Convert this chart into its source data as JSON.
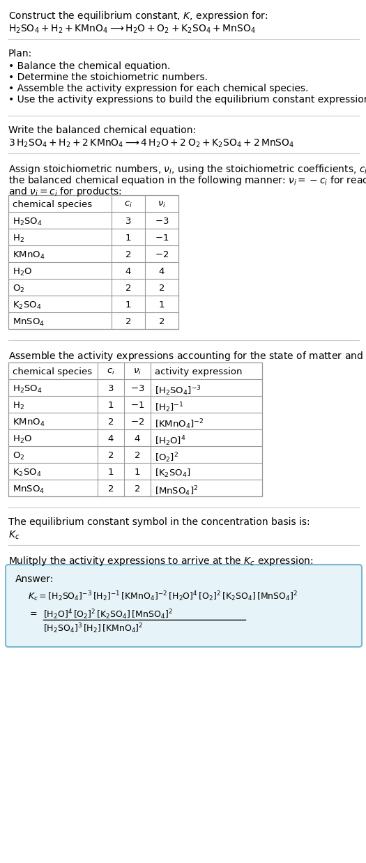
{
  "title_line1": "Construct the equilibrium constant, $K$, expression for:",
  "title_line2": "$\\mathrm{H_2SO_4 + H_2 + KMnO_4 \\longrightarrow H_2O + O_2 + K_2SO_4 + MnSO_4}$",
  "plan_header": "Plan:",
  "plan_items": [
    "Balance the chemical equation.",
    "Determine the stoichiometric numbers.",
    "Assemble the activity expression for each chemical species.",
    "Use the activity expressions to build the equilibrium constant expression."
  ],
  "balanced_header": "Write the balanced chemical equation:",
  "balanced_eq": "$3\\,\\mathrm{H_2SO_4 + H_2 + 2\\,KMnO_4 \\longrightarrow 4\\,H_2O + 2\\,O_2 + K_2SO_4 + 2\\,MnSO_4}$",
  "stoich_header_l1": "Assign stoichiometric numbers, $\\nu_i$, using the stoichiometric coefficients, $c_i$, from",
  "stoich_header_l2": "the balanced chemical equation in the following manner: $\\nu_i = -c_i$ for reactants",
  "stoich_header_l3": "and $\\nu_i = c_i$ for products:",
  "table1_headers": [
    "chemical species",
    "$c_i$",
    "$\\nu_i$"
  ],
  "table1_rows": [
    [
      "$\\mathrm{H_2SO_4}$",
      "3",
      "$-3$"
    ],
    [
      "$\\mathrm{H_2}$",
      "1",
      "$-1$"
    ],
    [
      "$\\mathrm{KMnO_4}$",
      "2",
      "$-2$"
    ],
    [
      "$\\mathrm{H_2O}$",
      "4",
      "4"
    ],
    [
      "$\\mathrm{O_2}$",
      "2",
      "2"
    ],
    [
      "$\\mathrm{K_2SO_4}$",
      "1",
      "1"
    ],
    [
      "$\\mathrm{MnSO_4}$",
      "2",
      "2"
    ]
  ],
  "activity_header": "Assemble the activity expressions accounting for the state of matter and $\\nu_i$:",
  "table2_headers": [
    "chemical species",
    "$c_i$",
    "$\\nu_i$",
    "activity expression"
  ],
  "table2_rows": [
    [
      "$\\mathrm{H_2SO_4}$",
      "3",
      "$-3$",
      "$[\\mathrm{H_2SO_4}]^{-3}$"
    ],
    [
      "$\\mathrm{H_2}$",
      "1",
      "$-1$",
      "$[\\mathrm{H_2}]^{-1}$"
    ],
    [
      "$\\mathrm{KMnO_4}$",
      "2",
      "$-2$",
      "$[\\mathrm{KMnO_4}]^{-2}$"
    ],
    [
      "$\\mathrm{H_2O}$",
      "4",
      "4",
      "$[\\mathrm{H_2O}]^{4}$"
    ],
    [
      "$\\mathrm{O_2}$",
      "2",
      "2",
      "$[\\mathrm{O_2}]^{2}$"
    ],
    [
      "$\\mathrm{K_2SO_4}$",
      "1",
      "1",
      "$[\\mathrm{K_2SO_4}]$"
    ],
    [
      "$\\mathrm{MnSO_4}$",
      "2",
      "2",
      "$[\\mathrm{MnSO_4}]^{2}$"
    ]
  ],
  "kc_header": "The equilibrium constant symbol in the concentration basis is:",
  "kc_symbol": "$K_c$",
  "multiply_header": "Mulitply the activity expressions to arrive at the $K_c$ expression:",
  "answer_label": "Answer:",
  "answer_line1": "$K_c = [\\mathrm{H_2SO_4}]^{-3}\\,[\\mathrm{H_2}]^{-1}\\,[\\mathrm{KMnO_4}]^{-2}\\,[\\mathrm{H_2O}]^{4}\\,[\\mathrm{O_2}]^{2}\\,[\\mathrm{K_2SO_4}]\\,[\\mathrm{MnSO_4}]^{2}$",
  "answer_numerator": "$[\\mathrm{H_2O}]^4\\,[\\mathrm{O_2}]^2\\,[\\mathrm{K_2SO_4}]\\,[\\mathrm{MnSO_4}]^2$",
  "answer_denominator": "$[\\mathrm{H_2SO_4}]^3\\,[\\mathrm{H_2}]\\,[\\mathrm{KMnO_4}]^2$",
  "bg_color": "#ffffff",
  "box_bg_color": "#e6f3f8",
  "box_border_color": "#7ab8d0",
  "table_border_color": "#999999",
  "text_color": "#000000",
  "font_size": 10.0,
  "small_font_size": 9.5
}
